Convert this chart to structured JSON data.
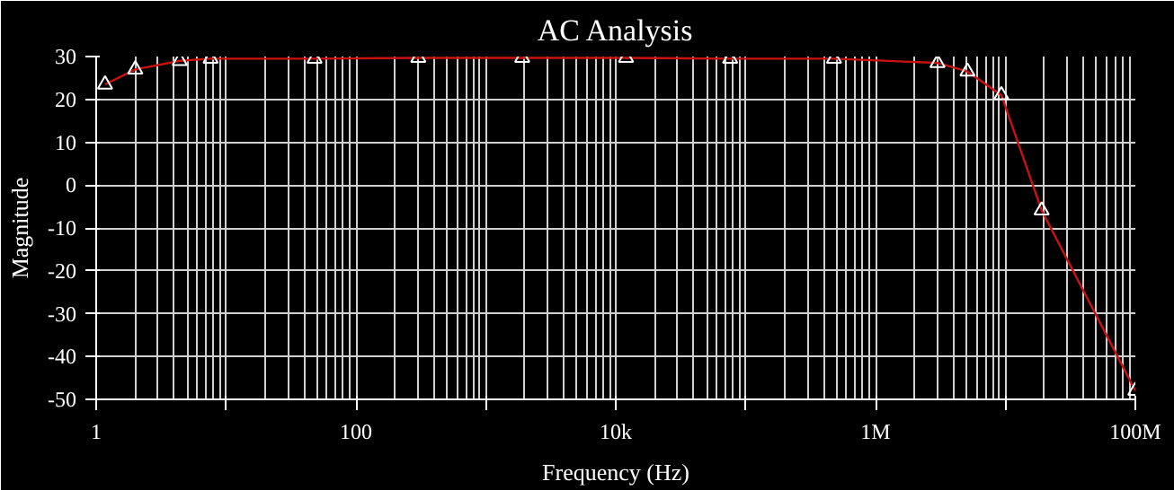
{
  "chart_data": {
    "type": "line",
    "title": "AC Analysis",
    "xlabel": "Frequency (Hz)",
    "ylabel": "Magnitude",
    "log": "x",
    "x": [
      1.17,
      2.0,
      4.4,
      7.6,
      48,
      302,
      1905,
      12000,
      76000,
      479000,
      3000000,
      5100000,
      9300000,
      19000000,
      100000000
    ],
    "series": [
      {
        "color": "#cc1111",
        "values": [
          23.5,
          27,
          29,
          29.5,
          29.5,
          29.7,
          29.7,
          29.7,
          29.5,
          29.5,
          28.5,
          26.5,
          21,
          -5.9,
          -48
        ]
      }
    ],
    "xlim": [
      1,
      100000000
    ],
    "ylim": [
      -50,
      30
    ],
    "xticks": [
      1,
      {
        "value": 10,
        "label": null
      },
      100,
      {
        "value": 1000,
        "label": null
      },
      {
        "value": 10000,
        "label": "10k"
      },
      {
        "value": 100000,
        "label": null
      },
      {
        "value": 1000000,
        "label": "1M"
      },
      {
        "value": 10000000,
        "label": null
      },
      {
        "value": 100000000,
        "label": "100M"
      }
    ],
    "yticks": [
      -50,
      -40,
      -30,
      -20,
      -10,
      0,
      10,
      20,
      30
    ],
    "grid": true,
    "marker": "triangle",
    "line_style": "solid"
  }
}
